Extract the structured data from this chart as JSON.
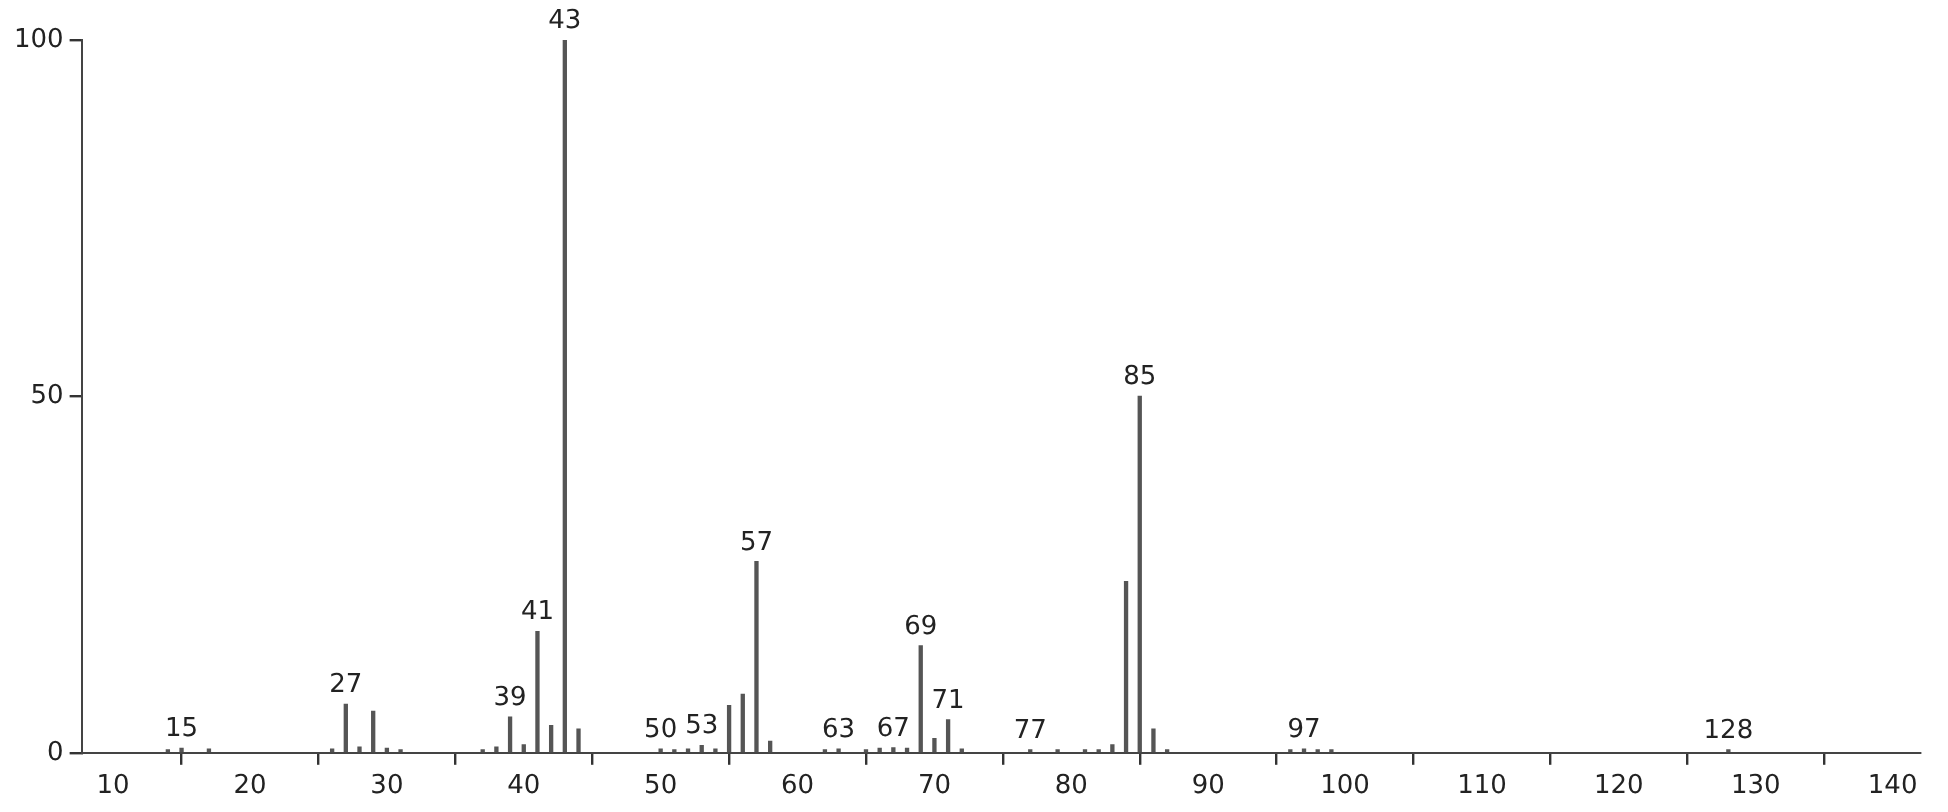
{
  "chart_data": {
    "type": "bar",
    "x": [
      14,
      15,
      17,
      26,
      27,
      28,
      29,
      30,
      31,
      37,
      38,
      39,
      40,
      41,
      42,
      43,
      44,
      50,
      51,
      52,
      53,
      54,
      55,
      56,
      57,
      58,
      62,
      63,
      65,
      66,
      67,
      68,
      69,
      70,
      71,
      72,
      77,
      79,
      81,
      82,
      83,
      84,
      85,
      86,
      87,
      96,
      97,
      98,
      99,
      128
    ],
    "values": [
      0.4,
      0.6,
      0.5,
      0.5,
      6.8,
      0.8,
      5.8,
      0.6,
      0.4,
      0.4,
      0.8,
      5,
      1.1,
      17,
      3.8,
      100,
      3.3,
      0.5,
      0.4,
      0.5,
      1,
      0.5,
      6.6,
      8.2,
      26.8,
      1.6,
      0.4,
      0.5,
      0.4,
      0.6,
      0.7,
      0.6,
      15,
      2,
      4.6,
      0.5,
      0.4,
      0.4,
      0.4,
      0.4,
      1.1,
      24,
      50,
      3.3,
      0.4,
      0.4,
      0.5,
      0.4,
      0.4,
      0.4
    ],
    "color": "#555555",
    "xlim": [
      7.7,
      142
    ],
    "xticks": [
      10,
      20,
      30,
      40,
      50,
      60,
      70,
      80,
      90,
      100,
      110,
      120,
      130,
      140
    ],
    "ylim": [
      0,
      100
    ],
    "yticks": [
      0,
      50,
      100
    ],
    "grid": false,
    "legend": false,
    "annotations": [
      {
        "text": "15",
        "x": 15,
        "y": 0.6
      },
      {
        "text": "27",
        "x": 27,
        "y": 6.8
      },
      {
        "text": "39",
        "x": 39,
        "y": 5
      },
      {
        "text": "41",
        "x": 41,
        "y": 17
      },
      {
        "text": "43",
        "x": 43,
        "y": 100
      },
      {
        "text": "50",
        "x": 50,
        "y": 0.5
      },
      {
        "text": "53",
        "x": 53,
        "y": 1
      },
      {
        "text": "57",
        "x": 57,
        "y": 26.8
      },
      {
        "text": "63",
        "x": 63,
        "y": 0.5
      },
      {
        "text": "67",
        "x": 67,
        "y": 0.7
      },
      {
        "text": "69",
        "x": 69,
        "y": 15
      },
      {
        "text": "71",
        "x": 71,
        "y": 4.6
      },
      {
        "text": "77",
        "x": 77,
        "y": 0.4
      },
      {
        "text": "85",
        "x": 85,
        "y": 50
      },
      {
        "text": "97",
        "x": 97,
        "y": 0.5
      },
      {
        "text": "128",
        "x": 128,
        "y": 0.4
      }
    ]
  }
}
